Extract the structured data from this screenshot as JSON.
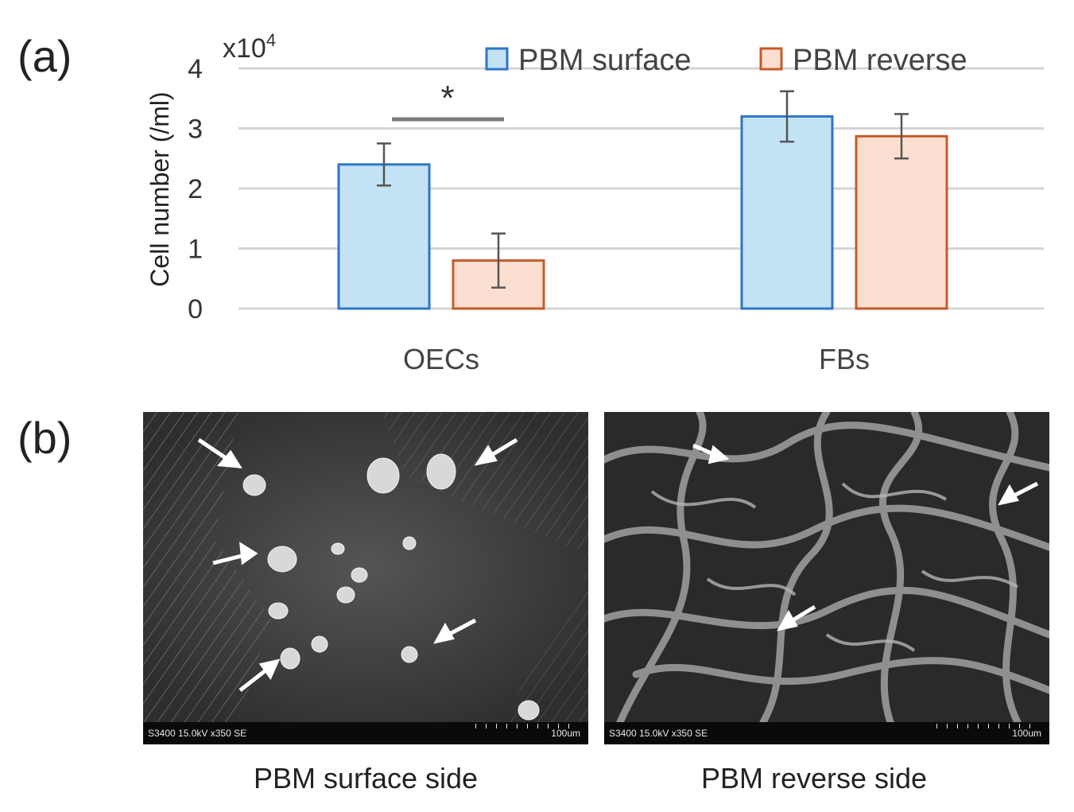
{
  "panels": {
    "a": "(a)",
    "b": "(b)"
  },
  "chart_data": {
    "type": "bar",
    "categories": [
      "OECs",
      "FBs"
    ],
    "series": [
      {
        "name": "PBM surface",
        "values": [
          2.4,
          3.2
        ],
        "errors": [
          0.35,
          0.42
        ],
        "fill": "#c3e3f5",
        "stroke": "#2e75c7"
      },
      {
        "name": "PBM reverse",
        "values": [
          0.8,
          2.87
        ],
        "errors": [
          0.45,
          0.37
        ],
        "fill": "#fadfd0",
        "stroke": "#c55a2a"
      }
    ],
    "ylabel": "Cell number (/ml)",
    "y_multiplier": "x10",
    "y_multiplier_exp": "4",
    "ylim": [
      0,
      4
    ],
    "yticks": [
      "0",
      "1",
      "2",
      "3",
      "4"
    ],
    "grid": true,
    "legend_position": "top",
    "significance": {
      "label": "*",
      "category": "OECs"
    }
  },
  "micrographs": [
    {
      "info": "S3400 15.0kV x350 SE",
      "scale": "100um",
      "caption": "PBM surface side"
    },
    {
      "info": "S3400 15.0kV x350 SE",
      "scale": "100um",
      "caption": "PBM reverse side"
    }
  ]
}
